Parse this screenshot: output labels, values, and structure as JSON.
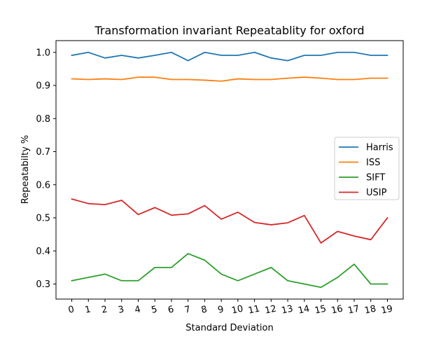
{
  "chart_data": {
    "type": "line",
    "title": "Transformation invariant Repeatablity for oxford",
    "xlabel": "Standard Deviation",
    "ylabel": "Repeatabilty %",
    "x": [
      0,
      1,
      2,
      3,
      4,
      5,
      6,
      7,
      8,
      9,
      10,
      11,
      12,
      13,
      14,
      15,
      16,
      17,
      18,
      19
    ],
    "x_tick_labels": [
      "0",
      "1",
      "2",
      "3",
      "4",
      "5",
      "6",
      "7",
      "8",
      "9",
      "10",
      "11",
      "12",
      "13",
      "14",
      "15",
      "16",
      "17",
      "18",
      "19"
    ],
    "xlim": [
      -0.95,
      19.95
    ],
    "ylim": [
      0.2545,
      1.0355
    ],
    "y_ticks": [
      0.3,
      0.4,
      0.5,
      0.6,
      0.7,
      0.8,
      0.9,
      1.0
    ],
    "y_tick_labels": [
      "0.3",
      "0.4",
      "0.5",
      "0.6",
      "0.7",
      "0.8",
      "0.9",
      "1.0"
    ],
    "grid": false,
    "legend_position": "center-right",
    "series": [
      {
        "name": "Harris",
        "color": "#1f77b4",
        "values": [
          0.991,
          1.0,
          0.983,
          0.991,
          0.983,
          0.991,
          1.0,
          0.975,
          1.0,
          0.991,
          0.991,
          1.0,
          0.983,
          0.975,
          0.991,
          0.991,
          1.0,
          1.0,
          0.991,
          0.991
        ]
      },
      {
        "name": "ISS",
        "color": "#ff7f0e",
        "values": [
          0.92,
          0.918,
          0.92,
          0.918,
          0.925,
          0.925,
          0.918,
          0.918,
          0.916,
          0.913,
          0.92,
          0.918,
          0.918,
          0.922,
          0.925,
          0.922,
          0.918,
          0.918,
          0.922,
          0.922
        ]
      },
      {
        "name": "SIFT",
        "color": "#2ca02c",
        "values": [
          0.31,
          0.32,
          0.33,
          0.31,
          0.31,
          0.35,
          0.35,
          0.392,
          0.372,
          0.33,
          0.31,
          0.33,
          0.35,
          0.31,
          0.3,
          0.29,
          0.32,
          0.36,
          0.3,
          0.3
        ]
      },
      {
        "name": "USIP",
        "color": "#d62728",
        "values": [
          0.557,
          0.543,
          0.54,
          0.553,
          0.51,
          0.531,
          0.508,
          0.512,
          0.537,
          0.496,
          0.517,
          0.486,
          0.479,
          0.485,
          0.507,
          0.424,
          0.459,
          0.445,
          0.434,
          0.5
        ]
      }
    ]
  }
}
